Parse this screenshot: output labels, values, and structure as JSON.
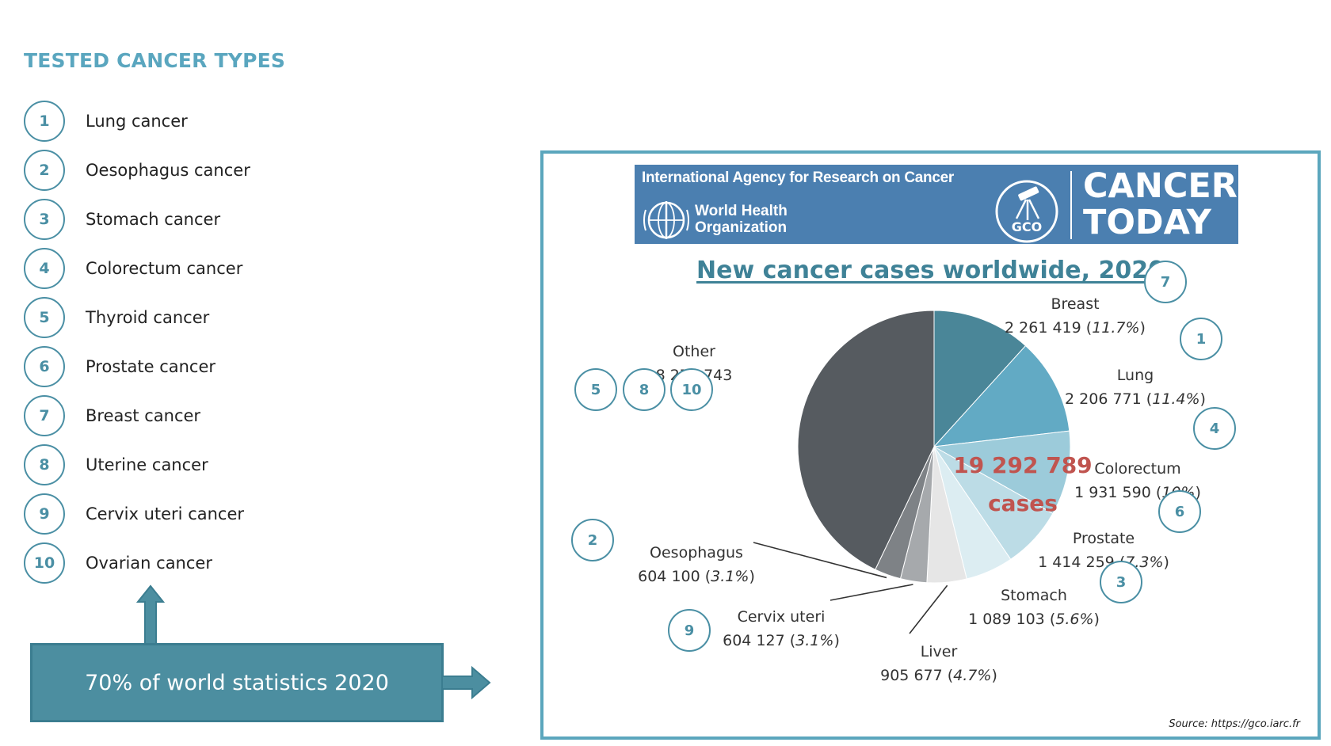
{
  "section_title": "TESTED CANCER TYPES",
  "cancer_types": [
    {
      "num": "1",
      "label": "Lung cancer"
    },
    {
      "num": "2",
      "label": "Oesophagus cancer"
    },
    {
      "num": "3",
      "label": "Stomach cancer"
    },
    {
      "num": "4",
      "label": "Colorectum cancer"
    },
    {
      "num": "5",
      "label": "Thyroid cancer"
    },
    {
      "num": "6",
      "label": "Prostate cancer"
    },
    {
      "num": "7",
      "label": "Breast cancer"
    },
    {
      "num": "8",
      "label": "Uterine cancer"
    },
    {
      "num": "9",
      "label": "Cervix uteri cancer"
    },
    {
      "num": "10",
      "label": "Ovarian cancer"
    }
  ],
  "stat_box": "70% of world statistics  2020",
  "banner": {
    "agency": "International Agency for Research on Cancer",
    "who_line1": "World Health",
    "who_line2": "Organization",
    "gco": "GCO",
    "brand_line1": "CANCER",
    "brand_line2": "TODAY"
  },
  "source": "Source: https://gco.iarc.fr",
  "colors": {
    "accent": "#5aa6bf",
    "box": "#4c8ea0",
    "banner": "#4b7fb0",
    "total": "#c0544f"
  },
  "chart_data": {
    "type": "pie",
    "title": "New cancer cases worldwide, 2020",
    "total_line1": "19 292 789",
    "total_line2": "cases",
    "slices": [
      {
        "name": "Breast",
        "value": 2261419,
        "value_text": "2 261 419",
        "pct": "11.7%",
        "color": "#4a8698",
        "markers": [
          "7"
        ]
      },
      {
        "name": "Lung",
        "value": 2206771,
        "value_text": "2 206 771",
        "pct": "11.4%",
        "color": "#62aac4",
        "markers": [
          "1"
        ]
      },
      {
        "name": "Colorectum",
        "value": 1931590,
        "value_text": "1 931 590",
        "pct": "10%",
        "color": "#9ccbda",
        "markers": [
          "4"
        ]
      },
      {
        "name": "Prostate",
        "value": 1414259,
        "value_text": "1 414 259",
        "pct": "7.3%",
        "color": "#bcdce6",
        "markers": [
          "6"
        ]
      },
      {
        "name": "Stomach",
        "value": 1089103,
        "value_text": "1 089 103",
        "pct": "5.6%",
        "color": "#dcedf2",
        "markers": [
          "3"
        ]
      },
      {
        "name": "Liver",
        "value": 905677,
        "value_text": "905 677",
        "pct": "4.7%",
        "color": "#e6e6e6",
        "markers": []
      },
      {
        "name": "Cervix uteri",
        "value": 604127,
        "value_text": "604 127",
        "pct": "3.1%",
        "color": "#a6a9ac",
        "markers": [
          "9"
        ]
      },
      {
        "name": "Oesophagus",
        "value": 604100,
        "value_text": "604 100",
        "pct": "3.1%",
        "color": "#7e8286",
        "markers": [
          "2"
        ]
      },
      {
        "name": "Other",
        "value": 8275743,
        "value_text": "8 275 743",
        "pct": "",
        "color": "#565b60",
        "markers": [
          "5",
          "8",
          "10"
        ]
      }
    ]
  }
}
